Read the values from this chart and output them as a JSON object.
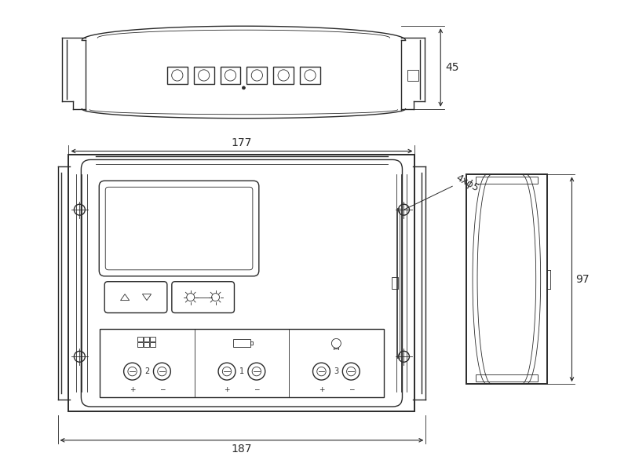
{
  "bg_color": "#ffffff",
  "line_color": "#2a2a2a",
  "dim_color": "#2a2a2a",
  "lw_main": 1.0,
  "lw_thin": 0.6,
  "lw_thick": 1.4,
  "fig_width": 8.0,
  "fig_height": 6.0,
  "dim_45": "45",
  "dim_177": "177",
  "dim_187": "187",
  "dim_97": "97",
  "dim_4x5": "4xϕ5"
}
